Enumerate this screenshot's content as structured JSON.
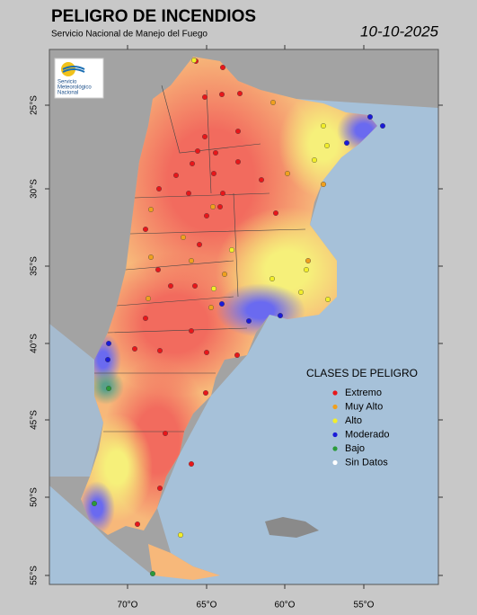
{
  "header": {
    "title": "PELIGRO DE INCENDIOS",
    "subtitle": "Servicio Nacional de Manejo del Fuego",
    "date": "10-10-2025"
  },
  "logo": {
    "lines": [
      "Servicio",
      "Meteorológico",
      "Nacional"
    ]
  },
  "axes": {
    "lat_labels": [
      "25°S",
      "30°S",
      "35°S",
      "40°S",
      "45°S",
      "50°S",
      "55°S"
    ],
    "lon_labels": [
      "70°O",
      "65°O",
      "60°O",
      "55°O"
    ]
  },
  "legend": {
    "title": "CLASES DE PELIGRO",
    "items": [
      {
        "label": "Extremo",
        "color": "#e8161a"
      },
      {
        "label": "Muy Alto",
        "color": "#f0a01e"
      },
      {
        "label": "Alto",
        "color": "#f2ee2a"
      },
      {
        "label": "Moderado",
        "color": "#1a1ad8"
      },
      {
        "label": "Bajo",
        "color": "#2a9a3a"
      },
      {
        "label": "Sin Datos",
        "color": "#ffffff"
      }
    ]
  }
}
